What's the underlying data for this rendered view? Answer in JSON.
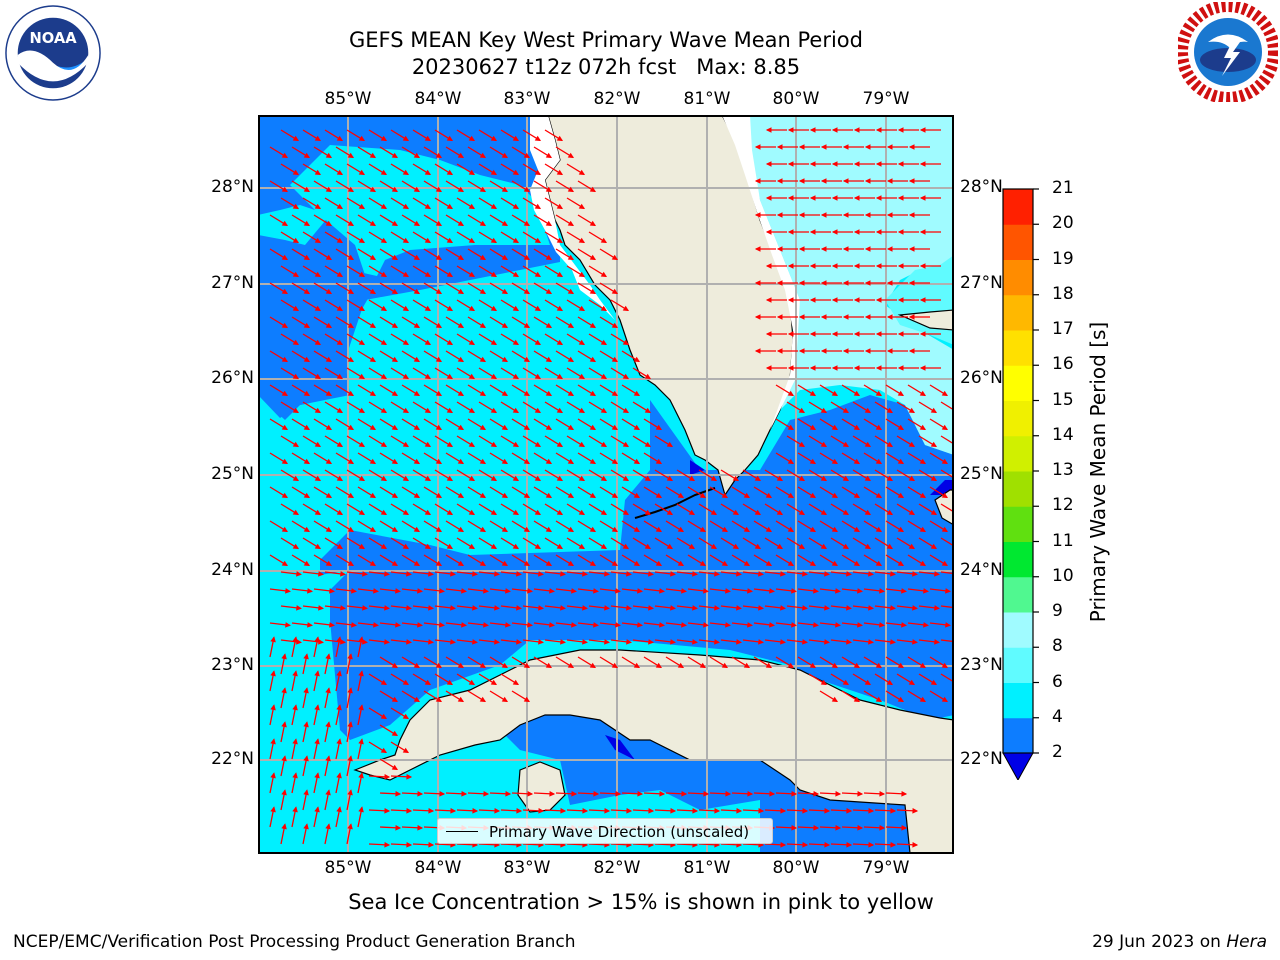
{
  "title_line1": "GEFS MEAN Key West Primary Wave Mean Period",
  "title_line2": "20230627 t12z 072h fcst   Max: 8.85",
  "logos": {
    "left": {
      "icon": "noaa-logo",
      "text": "NOAA",
      "ring_text": "NATIONAL OCEANIC AND ATMOSPHERIC ADMINISTRATION · U.S. DEPARTMENT OF COMMERCE"
    },
    "right": {
      "icon": "nws-logo",
      "ring_text": "NATIONAL WEATHER SERVICE"
    }
  },
  "map": {
    "lon_labels": [
      "85°W",
      "84°W",
      "83°W",
      "82°W",
      "81°W",
      "80°W",
      "79°W"
    ],
    "lat_labels": [
      "28°N",
      "27°N",
      "26°N",
      "25°N",
      "24°N",
      "23°N",
      "22°N"
    ],
    "legend_label": "Primary Wave Direction (unscaled)",
    "colors": {
      "land": "#eeecdc",
      "ocean_2_4": "#0d7dff",
      "ocean_4_6": "#00f0ff",
      "ocean_6_8": "#a0fbff",
      "ocean_lt_2": "#0000e6",
      "arrow": "#ff0000",
      "grid": "#b0b0b0",
      "coast": "#000000"
    }
  },
  "colorbar": {
    "label": "Primary Wave Mean Period [s]",
    "ticks": [
      "2",
      "4",
      "6",
      "8",
      "9",
      "10",
      "11",
      "12",
      "13",
      "14",
      "15",
      "16",
      "17",
      "18",
      "19",
      "20",
      "21"
    ],
    "colors": [
      "#0d7dff",
      "#00f0ff",
      "#60fbff",
      "#a0fbff",
      "#50f890",
      "#00e830",
      "#60e010",
      "#a0e000",
      "#d0f000",
      "#f0f000",
      "#ffff00",
      "#ffe000",
      "#ffb800",
      "#ff8c00",
      "#ff5500",
      "#ff2000"
    ],
    "extend_color": "#0000e6"
  },
  "note": "Sea Ice Concentration > 15% is shown in pink to yellow",
  "footer_left": "NCEP/EMC/Verification Post Processing Product Generation Branch",
  "footer_right_date": "29 Jun 2023 on",
  "footer_right_host": "Hera"
}
